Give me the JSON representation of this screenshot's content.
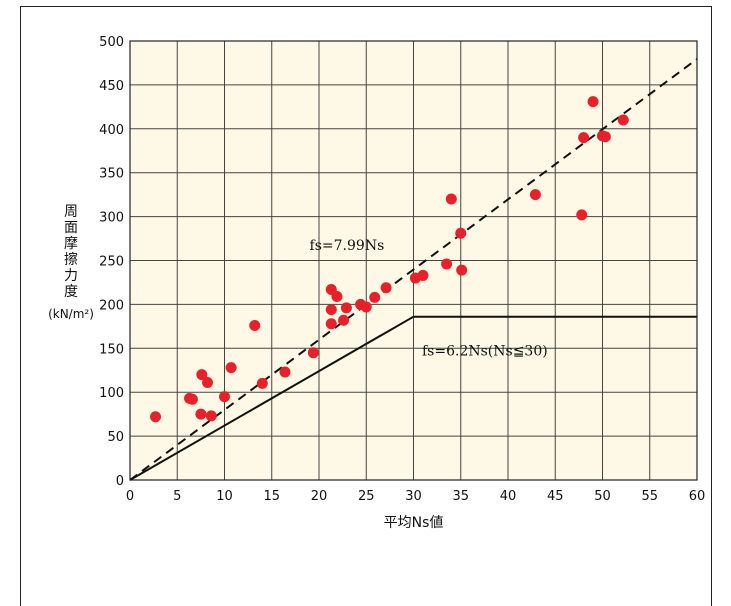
{
  "chart_data": {
    "type": "scatter",
    "xlabel": "平均Ns値",
    "ylabel_chars": [
      "周",
      "面",
      "摩",
      "擦",
      "力",
      "度"
    ],
    "yunit": "(kN/m²)",
    "xlim": [
      0,
      60
    ],
    "ylim": [
      0,
      500
    ],
    "xticks": [
      0,
      5,
      10,
      15,
      20,
      25,
      30,
      35,
      40,
      45,
      50,
      55,
      60
    ],
    "yticks": [
      0,
      50,
      100,
      150,
      200,
      250,
      300,
      350,
      400,
      450,
      500
    ],
    "grid": true,
    "colors": {
      "plot_bg": "#fdf9e6",
      "grid": "#444444",
      "point": "#e8202a",
      "line": "#111111"
    },
    "points": [
      [
        2.7,
        72
      ],
      [
        6.3,
        93
      ],
      [
        6.6,
        92
      ],
      [
        7.5,
        75
      ],
      [
        7.6,
        120
      ],
      [
        8.2,
        111
      ],
      [
        8.6,
        73
      ],
      [
        10.0,
        95
      ],
      [
        10.7,
        128
      ],
      [
        13.2,
        176
      ],
      [
        14.0,
        110
      ],
      [
        16.4,
        123
      ],
      [
        19.4,
        145
      ],
      [
        21.3,
        217
      ],
      [
        21.3,
        194
      ],
      [
        21.3,
        178
      ],
      [
        21.9,
        209
      ],
      [
        22.6,
        182
      ],
      [
        22.9,
        196
      ],
      [
        24.4,
        200
      ],
      [
        25.0,
        197
      ],
      [
        25.9,
        208
      ],
      [
        27.1,
        219
      ],
      [
        30.2,
        230
      ],
      [
        31.0,
        233
      ],
      [
        33.5,
        246
      ],
      [
        34.0,
        320
      ],
      [
        35.0,
        281
      ],
      [
        35.1,
        239
      ],
      [
        42.9,
        325
      ],
      [
        47.8,
        302
      ],
      [
        48.0,
        390
      ],
      [
        49.0,
        431
      ],
      [
        50.0,
        392
      ],
      [
        50.3,
        391
      ],
      [
        52.2,
        410
      ]
    ],
    "lines": [
      {
        "name": "fs=7.99Ns",
        "style": "dashed",
        "x": [
          0,
          60
        ],
        "y": [
          0,
          479.4
        ]
      },
      {
        "name": "fs=6.2Ns(Ns≦30)",
        "style": "solid",
        "x": [
          0,
          30,
          60
        ],
        "y": [
          0,
          186,
          186
        ]
      }
    ],
    "annotations": {
      "dashed_label": "fs=7.99Ns",
      "solid_label": "fs=6.2Ns(Ns≦30)"
    }
  }
}
